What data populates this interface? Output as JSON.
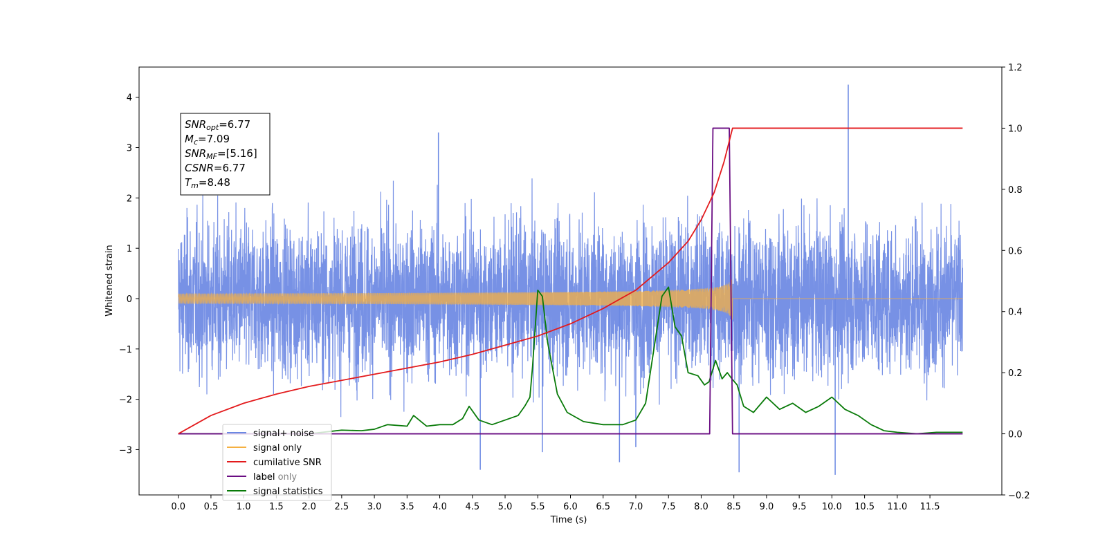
{
  "chart_data": {
    "type": "line",
    "xlabel": "Time (s)",
    "ylabel": "Whitened strain",
    "x_range": [
      -0.6,
      12.6
    ],
    "x_ticks": [
      "0.0",
      "0.5",
      "1.0",
      "1.5",
      "2.0",
      "2.5",
      "3.0",
      "3.5",
      "4.0",
      "4.5",
      "5.0",
      "5.5",
      "6.0",
      "6.5",
      "7.0",
      "7.5",
      "8.0",
      "8.5",
      "9.0",
      "9.5",
      "10.0",
      "10.5",
      "11.0",
      "11.5"
    ],
    "y_left": {
      "range": [
        -3.9,
        4.6
      ],
      "ticks": [
        "−3",
        "−2",
        "−1",
        "0",
        "1",
        "2",
        "3",
        "4"
      ]
    },
    "y_right": {
      "range": [
        -0.2,
        1.2
      ],
      "ticks": [
        "−0.2",
        "0.0",
        "0.2",
        "0.4",
        "0.6",
        "0.8",
        "1.0",
        "1.2"
      ]
    },
    "grid": false,
    "legend_placement": "lower-left",
    "annotation": [
      {
        "main": "SNR",
        "sub": "opt",
        "rest": "=6.77"
      },
      {
        "main": "M",
        "sub": "c",
        "rest": "=7.09"
      },
      {
        "main": "SNR",
        "sub": "MF",
        "rest": "=[5.16]"
      },
      {
        "main": "CSNR",
        "sub": "",
        "rest": "=6.77"
      },
      {
        "main": "T",
        "sub": "m",
        "rest": "=8.48"
      }
    ],
    "series": [
      {
        "name": "signal+ noise",
        "color": "#6b88e3",
        "axis": "left",
        "description": "whitened noise, approx ±2 to ±3.3 with occasional spikes, spans 0 to 12 s",
        "spikes": [
          [
            10.25,
            4.25
          ],
          [
            10.05,
            -3.5
          ],
          [
            4.62,
            -3.4
          ],
          [
            6.75,
            -3.25
          ],
          [
            7.0,
            -2.95
          ],
          [
            8.58,
            -3.45
          ],
          [
            5.57,
            -3.05
          ],
          [
            3.98,
            3.3
          ]
        ]
      },
      {
        "name": "signal only",
        "color": "#f5b041",
        "axis": "left",
        "description": "chirp with growing amplitude up to ~0.45 at 8.48 s, zero afterwards",
        "merger_time": 8.48,
        "peak_amplitude": 0.45
      },
      {
        "name": "cumilative SNR",
        "color": "#e31a1c",
        "axis": "right",
        "x": [
          0.0,
          0.5,
          1.0,
          1.5,
          2.0,
          2.5,
          3.0,
          3.5,
          4.0,
          4.5,
          5.0,
          5.5,
          6.0,
          6.5,
          7.0,
          7.5,
          7.8,
          8.0,
          8.2,
          8.35,
          8.48,
          12.0
        ],
        "y": [
          0.0,
          0.06,
          0.1,
          0.13,
          0.155,
          0.175,
          0.195,
          0.215,
          0.235,
          0.26,
          0.29,
          0.32,
          0.36,
          0.41,
          0.47,
          0.56,
          0.63,
          0.7,
          0.79,
          0.89,
          1.0,
          1.0
        ]
      },
      {
        "name": "label",
        "color": "#6a0d83",
        "axis": "right",
        "x": [
          0.0,
          8.13,
          8.18,
          8.43,
          8.48,
          12.0
        ],
        "y": [
          0.0,
          0.0,
          1.0,
          1.0,
          0.0,
          0.0
        ]
      },
      {
        "name": "label only",
        "color": "#c8c8c8",
        "axis": "right",
        "x": [],
        "y": []
      },
      {
        "name": "signal statistics",
        "color": "#087a08",
        "axis": "right",
        "x": [
          0.0,
          0.5,
          1.0,
          1.5,
          2.0,
          2.5,
          2.8,
          3.0,
          3.2,
          3.5,
          3.6,
          3.8,
          4.0,
          4.2,
          4.35,
          4.45,
          4.6,
          4.8,
          5.0,
          5.2,
          5.3,
          5.38,
          5.42,
          5.5,
          5.57,
          5.65,
          5.8,
          5.95,
          6.2,
          6.5,
          6.8,
          7.0,
          7.15,
          7.3,
          7.4,
          7.5,
          7.6,
          7.7,
          7.8,
          7.95,
          8.05,
          8.12,
          8.22,
          8.32,
          8.4,
          8.47,
          8.55,
          8.65,
          8.8,
          9.0,
          9.2,
          9.4,
          9.6,
          9.8,
          10.0,
          10.2,
          10.4,
          10.6,
          10.8,
          11.0,
          11.3,
          11.6,
          12.0
        ],
        "y": [
          0.0,
          0.0,
          0.0,
          0.0,
          0.0,
          0.012,
          0.01,
          0.015,
          0.03,
          0.025,
          0.06,
          0.025,
          0.03,
          0.03,
          0.05,
          0.09,
          0.045,
          0.03,
          0.045,
          0.06,
          0.09,
          0.12,
          0.22,
          0.47,
          0.45,
          0.3,
          0.13,
          0.07,
          0.04,
          0.03,
          0.03,
          0.045,
          0.1,
          0.31,
          0.45,
          0.48,
          0.35,
          0.32,
          0.2,
          0.19,
          0.16,
          0.17,
          0.24,
          0.18,
          0.2,
          0.18,
          0.16,
          0.09,
          0.07,
          0.12,
          0.08,
          0.1,
          0.07,
          0.09,
          0.12,
          0.08,
          0.06,
          0.03,
          0.01,
          0.005,
          0.0,
          0.005,
          0.005
        ]
      }
    ]
  }
}
